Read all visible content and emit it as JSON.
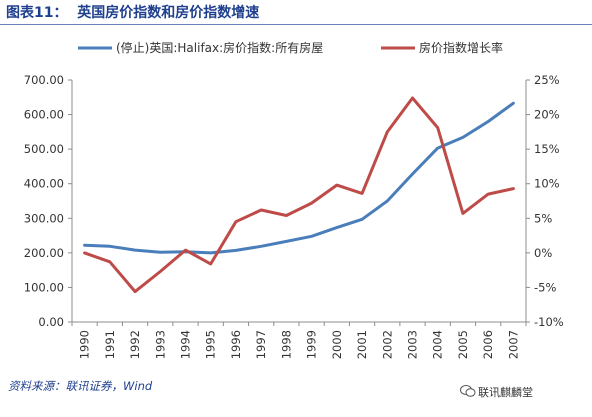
{
  "header": {
    "figure_title": "图表11：  英国房价指数和房价指数增速"
  },
  "footer": {
    "source": "资料来源：联讯证券，Wind",
    "watermark": "联讯麒麟堂"
  },
  "chart_data": {
    "type": "line",
    "categories": [
      "1990",
      "1991",
      "1992",
      "1993",
      "1994",
      "1995",
      "1996",
      "1997",
      "1998",
      "1999",
      "2000",
      "2001",
      "2002",
      "2003",
      "2004",
      "2005",
      "2006",
      "2007"
    ],
    "series": [
      {
        "name": "(停止)英国:Halifax:房价指数:所有房屋",
        "axis": "left",
        "color": "#4a7ebb",
        "values": [
          222,
          219,
          208,
          202,
          203,
          200,
          207,
          219,
          233,
          248,
          273,
          297,
          350,
          428,
          503,
          534,
          580,
          633
        ]
      },
      {
        "name": "房价指数增长率",
        "axis": "right",
        "color": "#be4b48",
        "values": [
          0.0,
          -1.3,
          -5.6,
          -2.7,
          0.4,
          -1.6,
          4.5,
          6.2,
          5.4,
          7.2,
          9.8,
          8.6,
          17.5,
          22.4,
          18.1,
          5.7,
          8.5,
          9.3
        ]
      }
    ],
    "y_left": {
      "ylim": [
        0,
        700
      ],
      "ticks": [
        "0.00",
        "100.00",
        "200.00",
        "300.00",
        "400.00",
        "500.00",
        "600.00",
        "700.00"
      ]
    },
    "y_right": {
      "ylim": [
        -10,
        25
      ],
      "ticks": [
        "-10%",
        "-5%",
        "0%",
        "5%",
        "10%",
        "15%",
        "20%",
        "25%"
      ]
    },
    "grid": false,
    "legend_position": "top"
  }
}
